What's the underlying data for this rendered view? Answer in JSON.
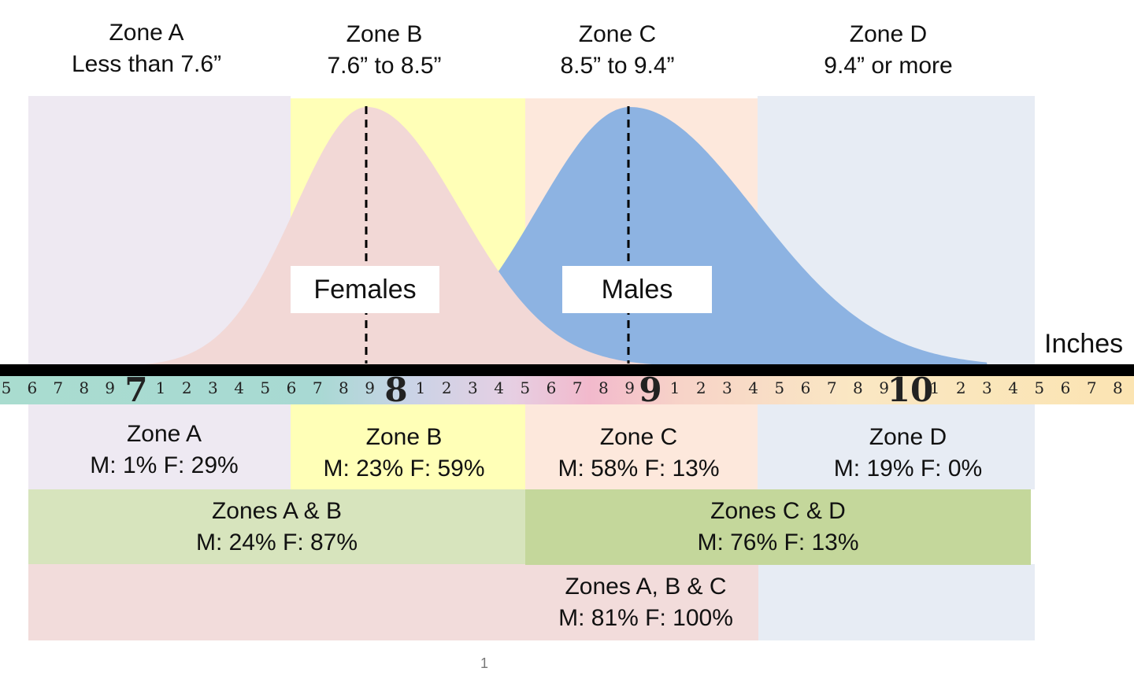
{
  "colors": {
    "zone_a": "#eee9f2",
    "zone_b": "#ffffb7",
    "zone_c": "#fde8dc",
    "zone_d": "#e7ecf4",
    "females_curve": "#f2d8d6",
    "males_curve": "#8db3e2",
    "zones_ab": "#d7e4bd",
    "zones_cd": "#c4d79b",
    "zones_abc": "#f2dcdb"
  },
  "header": {
    "zones": [
      {
        "name": "Zone A",
        "range": "Less than 7.6”"
      },
      {
        "name": "Zone B",
        "range": "7.6” to 8.5”"
      },
      {
        "name": "Zone C",
        "range": "8.5” to 9.4”"
      },
      {
        "name": "Zone D",
        "range": "9.4” or more"
      }
    ]
  },
  "curves": {
    "females_label": "Females",
    "males_label": "Males"
  },
  "ruler": {
    "unit_label": "Inches",
    "major_numbers": [
      "7",
      "8",
      "9",
      "10"
    ],
    "minor_digits": [
      "1",
      "2",
      "3",
      "4",
      "5",
      "6",
      "7",
      "8",
      "9"
    ]
  },
  "zone_results": [
    {
      "name": "Zone A",
      "stats": "M: 1% F: 29%"
    },
    {
      "name": "Zone B",
      "stats": "M: 23% F: 59%"
    },
    {
      "name": "Zone C",
      "stats": "M: 58% F: 13%"
    },
    {
      "name": "Zone D",
      "stats": "M: 19% F: 0%"
    }
  ],
  "combined_results": {
    "ab": {
      "name": "Zones A & B",
      "stats": "M: 24% F: 87%"
    },
    "cd": {
      "name": "Zones C & D",
      "stats": "M: 76% F: 13%"
    },
    "abc": {
      "name": "Zones A, B & C",
      "stats": "M: 81% F: 100%"
    }
  },
  "page_number": "1"
}
